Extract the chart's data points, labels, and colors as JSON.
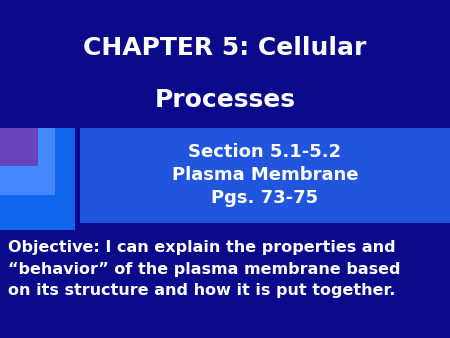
{
  "bg_color": "#0a0a8a",
  "title_line1": "CHAPTER 5: Cellular",
  "title_line2": "Processes",
  "title_color": "#ffffff",
  "title_fontsize": 18,
  "subtitle_box_color": "#2255dd",
  "subtitle_line1": "Section 5.1-5.2",
  "subtitle_line2": "Plasma Membrane",
  "subtitle_line3": "Pgs. 73-75",
  "subtitle_color": "#ffffff",
  "subtitle_fontsize": 13,
  "objective_text": "Objective: I can explain the properties and\n“behavior” of the plasma membrane based\non its structure and how it is put together.",
  "objective_color": "#ffffff",
  "objective_fontsize": 11.5,
  "deco_rect1_color": "#1166ee",
  "deco_rect2_color": "#4488ff",
  "deco_rect3_color": "#6644bb",
  "fig_width": 4.5,
  "fig_height": 3.38,
  "dpi": 100
}
